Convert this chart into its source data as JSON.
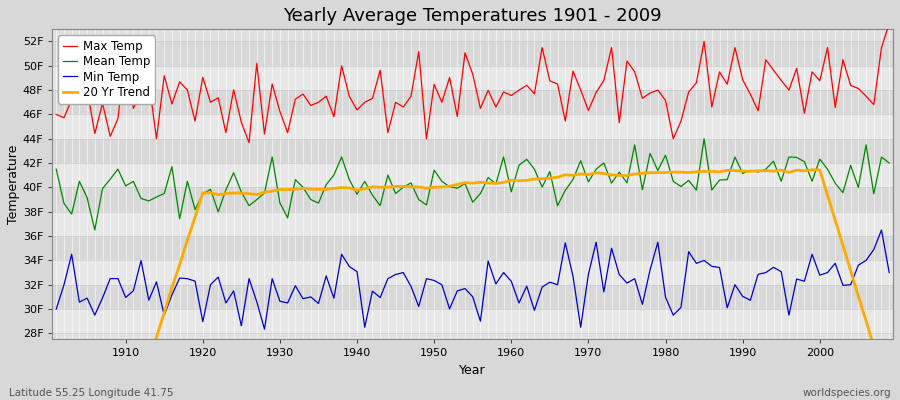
{
  "title": "Yearly Average Temperatures 1901 - 2009",
  "xlabel": "Year",
  "ylabel": "Temperature",
  "x_start": 1901,
  "x_end": 2009,
  "y_ticks": [
    28,
    30,
    32,
    34,
    36,
    38,
    40,
    42,
    44,
    46,
    48,
    50,
    52
  ],
  "y_labels": [
    "28F",
    "30F",
    "32F",
    "34F",
    "36F",
    "38F",
    "40F",
    "42F",
    "44F",
    "46F",
    "48F",
    "50F",
    "52F"
  ],
  "ylim": [
    27.5,
    53
  ],
  "xlim": [
    1900.5,
    2009.5
  ],
  "legend_labels": [
    "Max Temp",
    "Mean Temp",
    "Min Temp",
    "20 Yr Trend"
  ],
  "line_color_max": "#ff0000",
  "line_color_mean": "#008800",
  "line_color_min": "#0000cc",
  "line_color_trend": "#ffaa00",
  "bg_outer": "#d8d8d8",
  "bg_plot": "#e0e0e0",
  "band_color_light": "#e8e8e8",
  "band_color_dark": "#d8d8d8",
  "grid_color_v": "#ffffff",
  "grid_color_h": "#cccccc",
  "footer_left": "Latitude 55.25 Longitude 41.75",
  "footer_right": "worldspecies.org",
  "title_fontsize": 13,
  "label_fontsize": 9,
  "tick_fontsize": 8,
  "footer_fontsize": 7.5,
  "max_seed": 12,
  "mean_seed": 34,
  "min_seed": 56
}
